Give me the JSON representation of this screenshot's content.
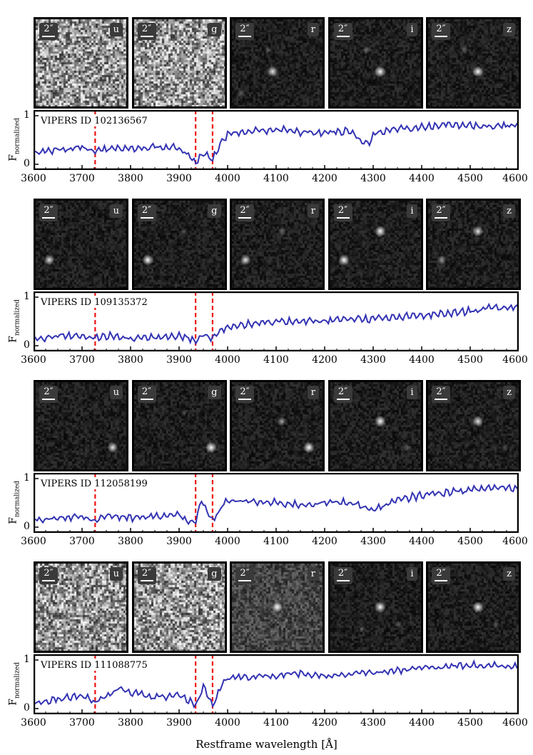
{
  "figure": {
    "x_axis_title": "Restframe wavelength [Å]",
    "y_axis_title_main": "F",
    "y_axis_title_sub": "normalized",
    "y_ticks": [
      "0",
      "1"
    ],
    "x_ticks": [
      "3600",
      "3700",
      "3800",
      "3900",
      "4000",
      "4100",
      "4200",
      "4300",
      "4400",
      "4500",
      "4600"
    ],
    "scale_label": "2″",
    "bands": [
      "u",
      "g",
      "r",
      "i",
      "z"
    ],
    "colors": {
      "spectrum": "#3333b3",
      "line_marker": "#ee1111",
      "cutout_bg": "#161616"
    }
  },
  "chart_data": [
    {
      "type": "line",
      "id_label": "VIPERS ID 102136567",
      "x_range": [
        3600,
        4600
      ],
      "y_range": [
        0,
        1
      ],
      "vertical_markers": [
        3727,
        3934,
        3969
      ],
      "x": [
        3600,
        3650,
        3700,
        3727,
        3750,
        3800,
        3850,
        3900,
        3934,
        3950,
        3969,
        3990,
        4000,
        4050,
        4100,
        4150,
        4200,
        4250,
        4290,
        4300,
        4350,
        4400,
        4450,
        4500,
        4550,
        4600
      ],
      "y": [
        0.26,
        0.3,
        0.34,
        0.28,
        0.32,
        0.3,
        0.35,
        0.34,
        0.05,
        0.22,
        0.12,
        0.48,
        0.62,
        0.68,
        0.72,
        0.66,
        0.65,
        0.68,
        0.4,
        0.62,
        0.74,
        0.76,
        0.82,
        0.8,
        0.78,
        0.82
      ]
    },
    {
      "type": "line",
      "id_label": "VIPERS ID 109135372",
      "x_range": [
        3600,
        4600
      ],
      "y_range": [
        0,
        1
      ],
      "vertical_markers": [
        3727,
        3934,
        3969
      ],
      "x": [
        3600,
        3650,
        3700,
        3727,
        3750,
        3800,
        3850,
        3900,
        3934,
        3950,
        3969,
        3990,
        4000,
        4050,
        4100,
        4150,
        4200,
        4250,
        4300,
        4350,
        4400,
        4450,
        4500,
        4550,
        4600
      ],
      "y": [
        0.14,
        0.2,
        0.19,
        0.16,
        0.2,
        0.15,
        0.18,
        0.22,
        0.1,
        0.22,
        0.16,
        0.34,
        0.4,
        0.45,
        0.48,
        0.52,
        0.5,
        0.56,
        0.55,
        0.58,
        0.62,
        0.66,
        0.72,
        0.78,
        0.8
      ]
    },
    {
      "type": "line",
      "id_label": "VIPERS ID 112058199",
      "x_range": [
        3600,
        4600
      ],
      "y_range": [
        0,
        1
      ],
      "vertical_markers": [
        3727,
        3934,
        3969
      ],
      "x": [
        3600,
        3650,
        3700,
        3727,
        3750,
        3800,
        3850,
        3900,
        3934,
        3945,
        3969,
        3990,
        4000,
        4050,
        4100,
        4150,
        4200,
        4250,
        4300,
        4350,
        4400,
        4450,
        4500,
        4550,
        4600
      ],
      "y": [
        0.15,
        0.18,
        0.24,
        0.12,
        0.25,
        0.18,
        0.22,
        0.25,
        0.06,
        0.55,
        0.12,
        0.45,
        0.55,
        0.52,
        0.5,
        0.46,
        0.5,
        0.52,
        0.35,
        0.55,
        0.66,
        0.72,
        0.76,
        0.82,
        0.8
      ]
    },
    {
      "type": "line",
      "id_label": "VIPERS ID 111088775",
      "x_range": [
        3600,
        4600
      ],
      "y_range": [
        0,
        1
      ],
      "vertical_markers": [
        3727,
        3934,
        3969
      ],
      "x": [
        3600,
        3650,
        3700,
        3727,
        3750,
        3780,
        3800,
        3850,
        3900,
        3934,
        3950,
        3969,
        3990,
        4000,
        4050,
        4100,
        4150,
        4200,
        4250,
        4300,
        4350,
        4400,
        4450,
        4500,
        4550,
        4600
      ],
      "y": [
        0.12,
        0.2,
        0.28,
        0.14,
        0.26,
        0.42,
        0.34,
        0.22,
        0.3,
        0.06,
        0.45,
        0.04,
        0.52,
        0.62,
        0.66,
        0.68,
        0.72,
        0.68,
        0.7,
        0.74,
        0.78,
        0.84,
        0.86,
        0.9,
        0.88,
        0.88
      ]
    }
  ],
  "cutouts": [
    {
      "row": 0,
      "panels": [
        {
          "band": "u",
          "style": "noisy",
          "sources": []
        },
        {
          "band": "g",
          "style": "noisy",
          "sources": []
        },
        {
          "band": "r",
          "style": "dark",
          "sources": [
            {
              "fx": 0.45,
              "fy": 0.6,
              "b": 0.9
            },
            {
              "fx": 0.4,
              "fy": 0.35,
              "b": 0.3
            },
            {
              "fx": 0.1,
              "fy": 0.85,
              "b": 0.3
            }
          ]
        },
        {
          "band": "i",
          "style": "dark",
          "sources": [
            {
              "fx": 0.55,
              "fy": 0.6,
              "b": 1.0
            },
            {
              "fx": 0.4,
              "fy": 0.35,
              "b": 0.4
            }
          ]
        },
        {
          "band": "z",
          "style": "dark",
          "sources": [
            {
              "fx": 0.55,
              "fy": 0.6,
              "b": 1.0
            },
            {
              "fx": 0.4,
              "fy": 0.35,
              "b": 0.3
            }
          ]
        }
      ]
    },
    {
      "row": 1,
      "panels": [
        {
          "band": "u",
          "style": "dark",
          "sources": [
            {
              "fx": 0.15,
              "fy": 0.68,
              "b": 0.9
            }
          ]
        },
        {
          "band": "g",
          "style": "dark",
          "sources": [
            {
              "fx": 0.15,
              "fy": 0.68,
              "b": 1.0
            },
            {
              "fx": 0.55,
              "fy": 0.35,
              "b": 0.2
            }
          ]
        },
        {
          "band": "r",
          "style": "dark",
          "sources": [
            {
              "fx": 0.15,
              "fy": 0.68,
              "b": 0.9
            },
            {
              "fx": 0.55,
              "fy": 0.35,
              "b": 0.4
            }
          ]
        },
        {
          "band": "i",
          "style": "dark",
          "sources": [
            {
              "fx": 0.15,
              "fy": 0.68,
              "b": 1.0
            },
            {
              "fx": 0.55,
              "fy": 0.35,
              "b": 1.0
            }
          ]
        },
        {
          "band": "z",
          "style": "dark",
          "sources": [
            {
              "fx": 0.15,
              "fy": 0.68,
              "b": 0.6
            },
            {
              "fx": 0.55,
              "fy": 0.35,
              "b": 0.9
            }
          ]
        }
      ]
    },
    {
      "row": 2,
      "panels": [
        {
          "band": "u",
          "style": "dark",
          "sources": [
            {
              "fx": 0.85,
              "fy": 0.75,
              "b": 0.9
            }
          ]
        },
        {
          "band": "g",
          "style": "dark",
          "sources": [
            {
              "fx": 0.85,
              "fy": 0.75,
              "b": 1.0
            },
            {
              "fx": 0.55,
              "fy": 0.35,
              "b": 0.2
            }
          ]
        },
        {
          "band": "r",
          "style": "dark",
          "sources": [
            {
              "fx": 0.85,
              "fy": 0.75,
              "b": 1.0
            },
            {
              "fx": 0.55,
              "fy": 0.45,
              "b": 0.6
            }
          ]
        },
        {
          "band": "i",
          "style": "dark",
          "sources": [
            {
              "fx": 0.85,
              "fy": 0.75,
              "b": 0.3
            },
            {
              "fx": 0.55,
              "fy": 0.45,
              "b": 1.0
            }
          ]
        },
        {
          "band": "z",
          "style": "dark",
          "sources": [
            {
              "fx": 0.85,
              "fy": 0.75,
              "b": 0.2
            },
            {
              "fx": 0.55,
              "fy": 0.45,
              "b": 0.9
            }
          ]
        }
      ]
    },
    {
      "row": 3,
      "panels": [
        {
          "band": "u",
          "style": "noisy",
          "sources": []
        },
        {
          "band": "g",
          "style": "noisy",
          "sources": []
        },
        {
          "band": "r",
          "style": "grey",
          "sources": [
            {
              "fx": 0.5,
              "fy": 0.5,
              "b": 1.0
            },
            {
              "fx": 0.6,
              "fy": 0.65,
              "b": 0.25
            }
          ]
        },
        {
          "band": "i",
          "style": "dark",
          "sources": [
            {
              "fx": 0.55,
              "fy": 0.5,
              "b": 1.0
            },
            {
              "fx": 0.35,
              "fy": 0.75,
              "b": 0.3
            },
            {
              "fx": 0.75,
              "fy": 0.7,
              "b": 0.3
            }
          ]
        },
        {
          "band": "z",
          "style": "dark",
          "sources": [
            {
              "fx": 0.55,
              "fy": 0.5,
              "b": 1.0
            },
            {
              "fx": 0.75,
              "fy": 0.7,
              "b": 0.3
            }
          ]
        }
      ]
    }
  ]
}
